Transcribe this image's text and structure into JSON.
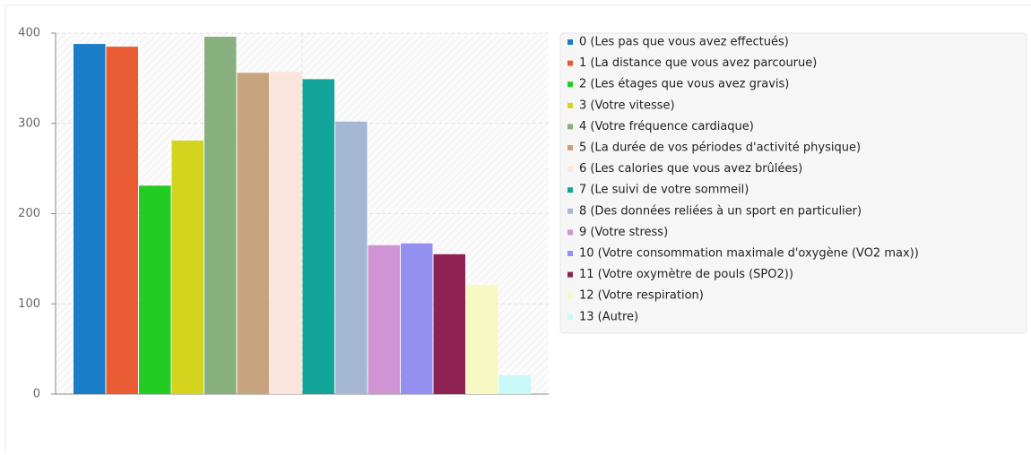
{
  "chart_data": {
    "type": "bar",
    "categories": [
      "0 (Les pas que vous avez effectués)",
      "1 (La distance que vous avez parcourue)",
      "2 (Les étages que vous avez gravis)",
      "3 (Votre vitesse)",
      "4 (Votre fréquence cardiaque)",
      "5 (La durée de vos périodes d'activité physique)",
      "6 (Les calories que vous avez brûlées)",
      "7 (Le suivi de votre sommeil)",
      "8 (Des données reliées à un sport en particulier)",
      "9 (Votre stress)",
      "10 (Votre consommation maximale d'oxygène (VO2 max))",
      "11 (Votre oxymètre de pouls (SPO2))",
      "12 (Votre respiration)",
      "13 (Autre)"
    ],
    "values": [
      388,
      385,
      231,
      281,
      396,
      356,
      357,
      349,
      302,
      165,
      167,
      155,
      121,
      21
    ],
    "colors": [
      "#1a7dc8",
      "#e95c33",
      "#22cc22",
      "#d4d41e",
      "#88b07e",
      "#c8a47e",
      "#fbe5dc",
      "#14a59a",
      "#a4b8d4",
      "#d094d4",
      "#9490f0",
      "#8e2352",
      "#f8f8c4",
      "#c8f8f8"
    ],
    "ylim": [
      0,
      400
    ],
    "yticks": [
      0,
      100,
      200,
      300,
      400
    ],
    "grid": true,
    "legend": "right"
  }
}
